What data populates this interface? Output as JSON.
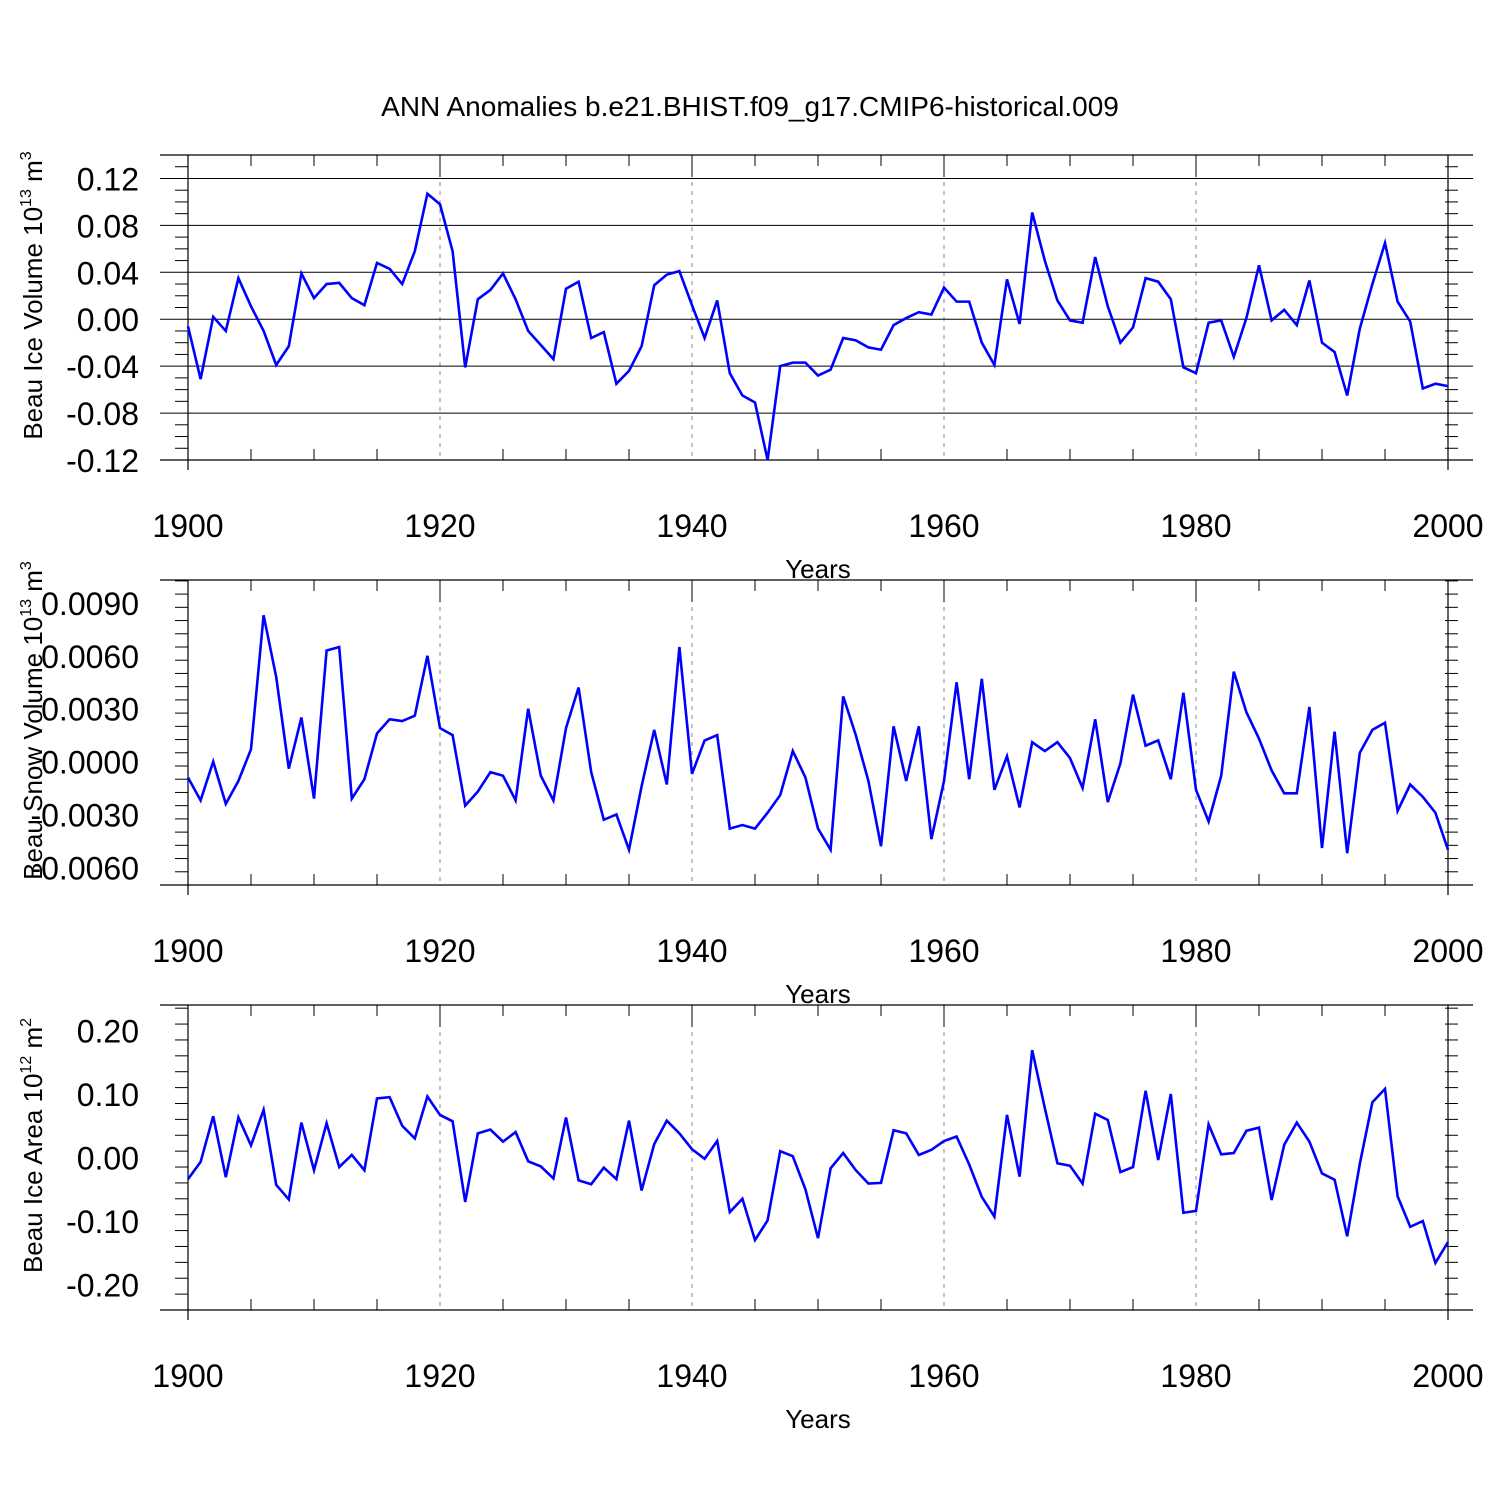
{
  "chart_data": [
    {
      "type": "line",
      "title": "ANN Anomalies b.e21.BHIST.f09_g17.CMIP6-historical.009",
      "ylabel": {
        "base": "Beau Ice Volume 10",
        "exponent": "13",
        "unit": " m",
        "unit_exponent": "3"
      },
      "xlabel": "Years",
      "xlim": [
        1900,
        2000
      ],
      "ylim": [
        -0.12,
        0.14
      ],
      "xticks": [
        1900,
        1920,
        1940,
        1960,
        1980,
        2000
      ],
      "xtick_labels": [
        "1900",
        "1920",
        "1940",
        "1960",
        "1980",
        "2000"
      ],
      "yticks": [
        -0.12,
        -0.08,
        -0.04,
        0.0,
        0.04,
        0.08,
        0.12
      ],
      "ytick_labels": [
        "-0.12",
        "-0.08",
        "-0.04",
        "0.00",
        "0.04",
        "0.08",
        "0.12"
      ],
      "grid": "dashed vertical at 1920, 1940, 1960, 1980",
      "line_color": "#0000ff",
      "series": [
        {
          "name": "Beau Ice Volume",
          "x_start": 1900,
          "values": [
            -0.006,
            -0.051,
            0.002,
            -0.01,
            0.035,
            0.011,
            -0.01,
            -0.039,
            -0.023,
            0.039,
            0.018,
            0.03,
            0.031,
            0.018,
            0.012,
            0.048,
            0.043,
            0.03,
            0.058,
            0.107,
            0.098,
            0.058,
            -0.041,
            0.017,
            0.025,
            0.039,
            0.017,
            -0.01,
            -0.022,
            -0.034,
            0.026,
            0.032,
            -0.016,
            -0.011,
            -0.055,
            -0.044,
            -0.023,
            0.029,
            0.038,
            0.041,
            0.012,
            -0.016,
            0.016,
            -0.046,
            -0.065,
            -0.071,
            -0.12,
            -0.04,
            -0.037,
            -0.037,
            -0.048,
            -0.043,
            -0.016,
            -0.018,
            -0.024,
            -0.026,
            -0.005,
            0.001,
            0.006,
            0.004,
            0.027,
            0.015,
            0.015,
            -0.02,
            -0.039,
            0.034,
            -0.004,
            0.091,
            0.05,
            0.016,
            -0.001,
            -0.003,
            0.053,
            0.011,
            -0.02,
            -0.007,
            0.035,
            0.032,
            0.017,
            -0.041,
            -0.046,
            -0.003,
            -0.001,
            -0.032,
            0.001,
            0.046,
            -0.001,
            0.008,
            -0.005,
            0.033,
            -0.02,
            -0.028,
            -0.065,
            -0.008,
            0.03,
            0.065,
            0.015,
            -0.002,
            -0.059,
            -0.055,
            -0.057
          ]
        }
      ]
    },
    {
      "type": "line",
      "ylabel": {
        "base": "Beau Snow Volume 10",
        "exponent": "13",
        "unit": " m",
        "unit_exponent": "3"
      },
      "xlabel": "Years",
      "xlim": [
        1900,
        2000
      ],
      "ylim": [
        -0.007,
        0.0103
      ],
      "xticks": [
        1900,
        1920,
        1940,
        1960,
        1980,
        2000
      ],
      "xtick_labels": [
        "1900",
        "1920",
        "1940",
        "1960",
        "1980",
        "2000"
      ],
      "yticks": [
        -0.006,
        -0.003,
        0.0,
        0.003,
        0.006,
        0.009
      ],
      "ytick_labels": [
        "-0.0060",
        "-0.0030",
        "0.0000",
        "0.0030",
        "0.0060",
        "0.0090"
      ],
      "grid": "dashed vertical at 1920, 1940, 1960, 1980",
      "line_color": "#0000ff",
      "series": [
        {
          "name": "Beau Snow Volume",
          "x_start": 1900,
          "values": [
            -0.0009,
            -0.0022,
            0.0,
            -0.0024,
            -0.0011,
            0.0007,
            0.0083,
            0.0048,
            -0.0004,
            0.0025,
            -0.0021,
            0.0063,
            0.0065,
            -0.0021,
            -0.001,
            0.0016,
            0.0024,
            0.0023,
            0.0026,
            0.006,
            0.0019,
            0.0015,
            -0.0025,
            -0.0017,
            -0.0006,
            -0.0008,
            -0.0022,
            0.003,
            -0.0008,
            -0.0022,
            0.0019,
            0.0042,
            -0.0006,
            -0.0033,
            -0.003,
            -0.005,
            -0.0014,
            0.0018,
            -0.0013,
            0.0065,
            -0.0007,
            0.0012,
            0.0015,
            -0.0038,
            -0.0036,
            -0.0038,
            -0.0029,
            -0.0019,
            0.0006,
            -0.0009,
            -0.0038,
            -0.005,
            0.0037,
            0.0015,
            -0.0011,
            -0.0048,
            0.002,
            -0.0011,
            0.002,
            -0.0044,
            -0.0011,
            0.0045,
            -0.001,
            0.0047,
            -0.0016,
            0.0003,
            -0.0026,
            0.0011,
            0.0006,
            0.0011,
            0.0002,
            -0.0015,
            0.0024,
            -0.0023,
            -0.0001,
            0.0038,
            0.0009,
            0.0012,
            -0.001,
            0.0039,
            -0.0016,
            -0.0034,
            -0.0008,
            0.0051,
            0.0028,
            0.0013,
            -0.0005,
            -0.0018,
            -0.0018,
            0.0031,
            -0.0049,
            0.0017,
            -0.0052,
            0.0005,
            0.0018,
            0.0022,
            -0.0028,
            -0.0013,
            -0.002,
            -0.0029,
            -0.005
          ]
        }
      ]
    },
    {
      "type": "line",
      "ylabel": {
        "base": "Beau Ice Area 10",
        "exponent": "12",
        "unit": " m",
        "unit_exponent": "2"
      },
      "xlabel": "Years",
      "xlim": [
        1900,
        2000
      ],
      "ylim": [
        -0.24,
        0.24
      ],
      "xticks": [
        1900,
        1920,
        1940,
        1960,
        1980,
        2000
      ],
      "xtick_labels": [
        "1900",
        "1920",
        "1940",
        "1960",
        "1980",
        "2000"
      ],
      "yticks": [
        -0.2,
        -0.1,
        0.0,
        0.1,
        0.2
      ],
      "ytick_labels": [
        "-0.20",
        "-0.10",
        "0.00",
        "0.10",
        "0.20"
      ],
      "grid": "dashed vertical at 1920, 1940, 1960, 1980",
      "line_color": "#0000ff",
      "series": [
        {
          "name": "Beau Ice Area",
          "x_start": 1900,
          "values": [
            -0.034,
            -0.007,
            0.065,
            -0.031,
            0.063,
            0.019,
            0.075,
            -0.043,
            -0.066,
            0.055,
            -0.02,
            0.054,
            -0.015,
            0.004,
            -0.02,
            0.093,
            0.095,
            0.05,
            0.03,
            0.096,
            0.067,
            0.057,
            -0.07,
            0.038,
            0.044,
            0.025,
            0.04,
            -0.006,
            -0.014,
            -0.033,
            0.063,
            -0.036,
            -0.042,
            -0.016,
            -0.034,
            0.058,
            -0.052,
            0.021,
            0.058,
            0.038,
            0.013,
            -0.002,
            0.026,
            -0.086,
            -0.065,
            -0.13,
            -0.099,
            0.01,
            0.002,
            -0.05,
            -0.127,
            -0.017,
            0.007,
            -0.02,
            -0.041,
            -0.04,
            0.043,
            0.038,
            0.004,
            0.012,
            0.026,
            0.033,
            -0.011,
            -0.062,
            -0.093,
            0.067,
            -0.03,
            0.169,
            0.078,
            -0.009,
            -0.013,
            -0.041,
            0.069,
            0.059,
            -0.023,
            -0.015,
            0.105,
            -0.004,
            0.1,
            -0.087,
            -0.084,
            0.052,
            0.005,
            0.007,
            0.042,
            0.047,
            -0.067,
            0.02,
            0.055,
            0.025,
            -0.025,
            -0.035,
            -0.124,
            -0.01,
            0.087,
            0.108,
            -0.061,
            -0.109,
            -0.1,
            -0.166,
            -0.133
          ]
        }
      ]
    }
  ]
}
